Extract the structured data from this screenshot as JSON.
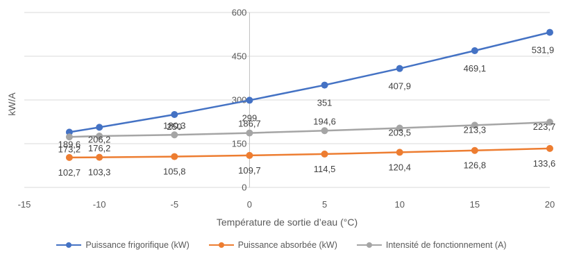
{
  "chart_data": {
    "type": "line",
    "title": "",
    "xlabel": "Température de sortie d’eau (°C)",
    "ylabel": "kW/A",
    "xlim": [
      -15,
      20
    ],
    "ylim": [
      0,
      600
    ],
    "x_ticks": [
      -15,
      -10,
      -5,
      0,
      5,
      10,
      15,
      20
    ],
    "y_ticks": [
      0,
      150,
      300,
      450,
      600
    ],
    "grid": "horizontal",
    "legend_position": "bottom",
    "x": [
      -12,
      -10,
      -5,
      0,
      5,
      10,
      15,
      20
    ],
    "x_tick_labels": [
      "-15",
      "-10",
      "-5",
      "0",
      "5",
      "10",
      "15",
      "20"
    ],
    "y_tick_labels": [
      "0",
      "150",
      "300",
      "450",
      "600"
    ],
    "series": [
      {
        "name": "Puissance frigorifique (kW)",
        "color": "#4472C4",
        "values": [
          189.6,
          206.2,
          250,
          299,
          351,
          407.9,
          469.1,
          531.9
        ],
        "labels": [
          "189,6",
          "206,2",
          "250",
          "299",
          "351",
          "407,9",
          "469,1",
          "531,9"
        ]
      },
      {
        "name": "Puissance absorbée (kW)",
        "color": "#ED7D31",
        "values": [
          102.7,
          103.3,
          105.8,
          109.7,
          114.5,
          120.4,
          126.8,
          133.6
        ],
        "labels": [
          "102,7",
          "103,3",
          "105,8",
          "109,7",
          "114,5",
          "120,4",
          "126,8",
          "133,6"
        ]
      },
      {
        "name": "Intensité de fonctionnement (A)",
        "color": "#A5A5A5",
        "values": [
          173.2,
          176.2,
          180.3,
          186.7,
          194.6,
          203.5,
          213.3,
          223.7
        ],
        "labels": [
          "173,2",
          "176,2",
          "180,3",
          "186,7",
          "194,6",
          "203,5",
          "213,3",
          "223,7"
        ]
      }
    ]
  }
}
